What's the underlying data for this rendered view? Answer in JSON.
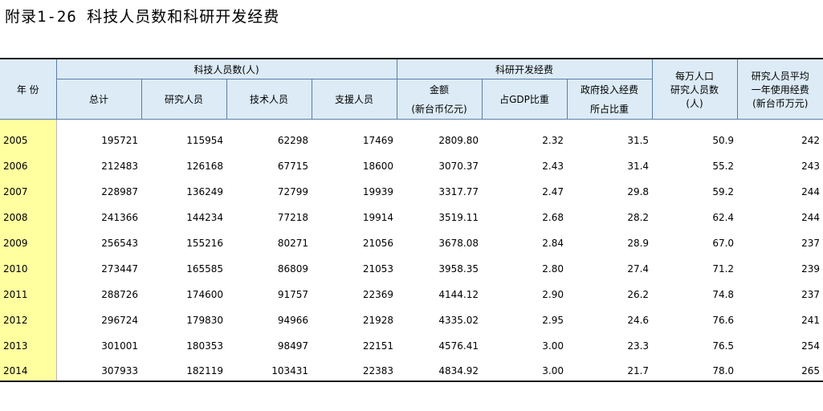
{
  "title": "附录1-26   科技人员数和科研开发经费",
  "header": {
    "year": "年 份",
    "group_personnel": "科技人员数(人)",
    "group_rd": "科研开发经费",
    "per10k_line1": "每万人口",
    "per10k_line2": "研究人员数",
    "per10k_line3": "(人)",
    "avg_line1": "研究人员平均",
    "avg_line2": "一年使用经费",
    "avg_line3": "(新台币万元)",
    "total": "总计",
    "researchers": "研究人员",
    "technicians": "技术人员",
    "support": "支援人员",
    "amount_line1": "金额",
    "amount_line2": "(新台币亿元)",
    "gdp_ratio": "占GDP比重",
    "gov_line1": "政府投入经费",
    "gov_line2": "所占比重"
  },
  "rows": [
    {
      "year": "2005",
      "total": "195721",
      "researchers": "115954",
      "technicians": "62298",
      "support": "17469",
      "amount": "2809.80",
      "gdp": "2.32",
      "gov": "31.5",
      "per10k": "50.9",
      "avg": "242"
    },
    {
      "year": "2006",
      "total": "212483",
      "researchers": "126168",
      "technicians": "67715",
      "support": "18600",
      "amount": "3070.37",
      "gdp": "2.43",
      "gov": "31.4",
      "per10k": "55.2",
      "avg": "243"
    },
    {
      "year": "2007",
      "total": "228987",
      "researchers": "136249",
      "technicians": "72799",
      "support": "19939",
      "amount": "3317.77",
      "gdp": "2.47",
      "gov": "29.8",
      "per10k": "59.2",
      "avg": "244"
    },
    {
      "year": "2008",
      "total": "241366",
      "researchers": "144234",
      "technicians": "77218",
      "support": "19914",
      "amount": "3519.11",
      "gdp": "2.68",
      "gov": "28.2",
      "per10k": "62.4",
      "avg": "244"
    },
    {
      "year": "2009",
      "total": "256543",
      "researchers": "155216",
      "technicians": "80271",
      "support": "21056",
      "amount": "3678.08",
      "gdp": "2.84",
      "gov": "28.9",
      "per10k": "67.0",
      "avg": "237"
    },
    {
      "year": "2010",
      "total": "273447",
      "researchers": "165585",
      "technicians": "86809",
      "support": "21053",
      "amount": "3958.35",
      "gdp": "2.80",
      "gov": "27.4",
      "per10k": "71.2",
      "avg": "239"
    },
    {
      "year": "2011",
      "total": "288726",
      "researchers": "174600",
      "technicians": "91757",
      "support": "22369",
      "amount": "4144.12",
      "gdp": "2.90",
      "gov": "26.2",
      "per10k": "74.8",
      "avg": "237"
    },
    {
      "year": "2012",
      "total": "296724",
      "researchers": "179830",
      "technicians": "94966",
      "support": "21928",
      "amount": "4335.02",
      "gdp": "2.95",
      "gov": "24.6",
      "per10k": "76.6",
      "avg": "241"
    },
    {
      "year": "2013",
      "total": "301001",
      "researchers": "180353",
      "technicians": "98497",
      "support": "22151",
      "amount": "4576.41",
      "gdp": "3.00",
      "gov": "23.3",
      "per10k": "76.5",
      "avg": "254"
    },
    {
      "year": "2014",
      "total": "307933",
      "researchers": "182119",
      "technicians": "103431",
      "support": "22383",
      "amount": "4834.92",
      "gdp": "3.00",
      "gov": "21.7",
      "per10k": "78.0",
      "avg": "265"
    }
  ]
}
